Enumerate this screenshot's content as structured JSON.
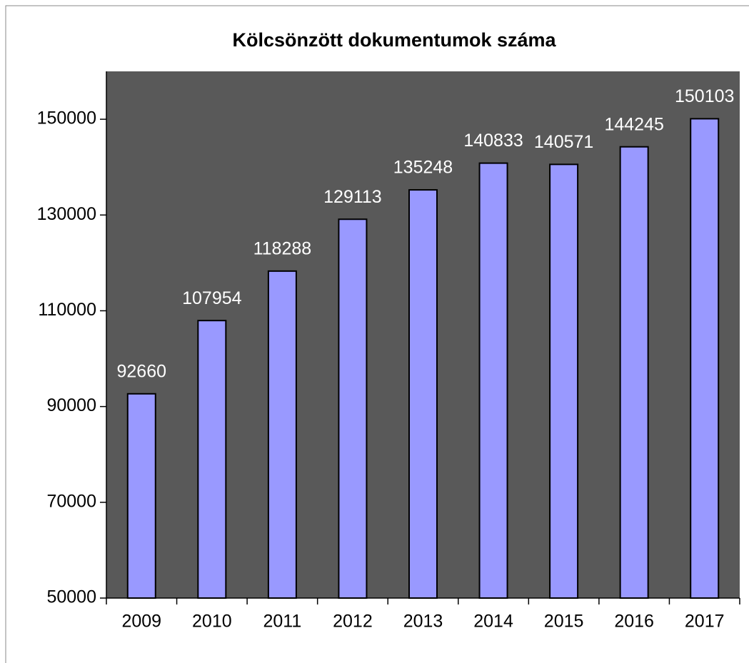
{
  "chart_data": {
    "type": "bar",
    "title": "Kölcsönzött dokumentumok száma",
    "categories": [
      "2009",
      "2010",
      "2011",
      "2012",
      "2013",
      "2014",
      "2015",
      "2016",
      "2017"
    ],
    "values": [
      92660,
      107954,
      118288,
      129113,
      135248,
      140833,
      140571,
      144245,
      150103
    ],
    "color": "#9999ff",
    "plot_background": "#595959",
    "ylim": [
      50000,
      160000
    ],
    "yticks": [
      50000,
      70000,
      90000,
      110000,
      130000,
      150000
    ],
    "grid": false
  }
}
